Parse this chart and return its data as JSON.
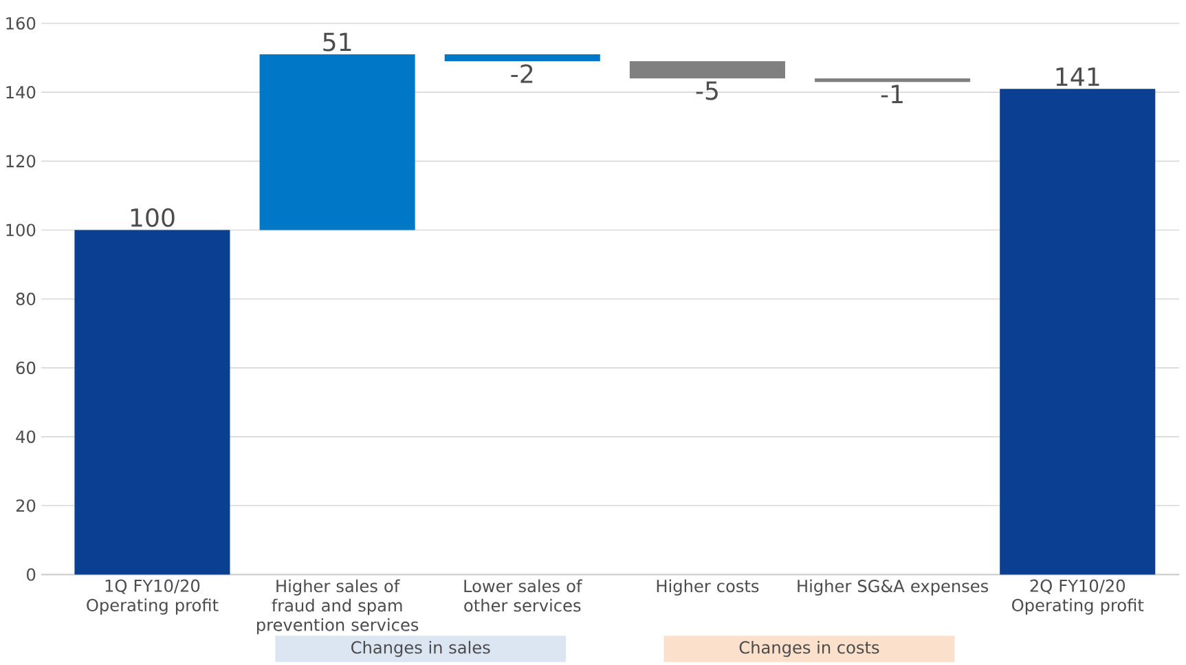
{
  "chart_data": {
    "type": "bar",
    "categories": [
      "1Q FY10/20 Operating profit",
      "Higher sales of fraud and spam prevention services",
      "Lower sales of other services",
      "Higher costs",
      "Higher SG&A expenses",
      "2Q FY10/20 Operating profit"
    ],
    "values": [
      100,
      51,
      -2,
      -5,
      -1,
      141
    ],
    "base": [
      0,
      100,
      151,
      149,
      144,
      0
    ],
    "colors": [
      "#0b3f91",
      "#0078c8",
      "#0078c8",
      "#808080",
      "#808080",
      "#0b3f91"
    ],
    "data_labels": true,
    "ylim": [
      0,
      160
    ],
    "yticks": [
      0,
      20,
      40,
      60,
      80,
      100,
      120,
      140,
      160
    ],
    "grid": "y",
    "annotations": [
      "Changes in sales",
      "Changes in costs"
    ]
  }
}
